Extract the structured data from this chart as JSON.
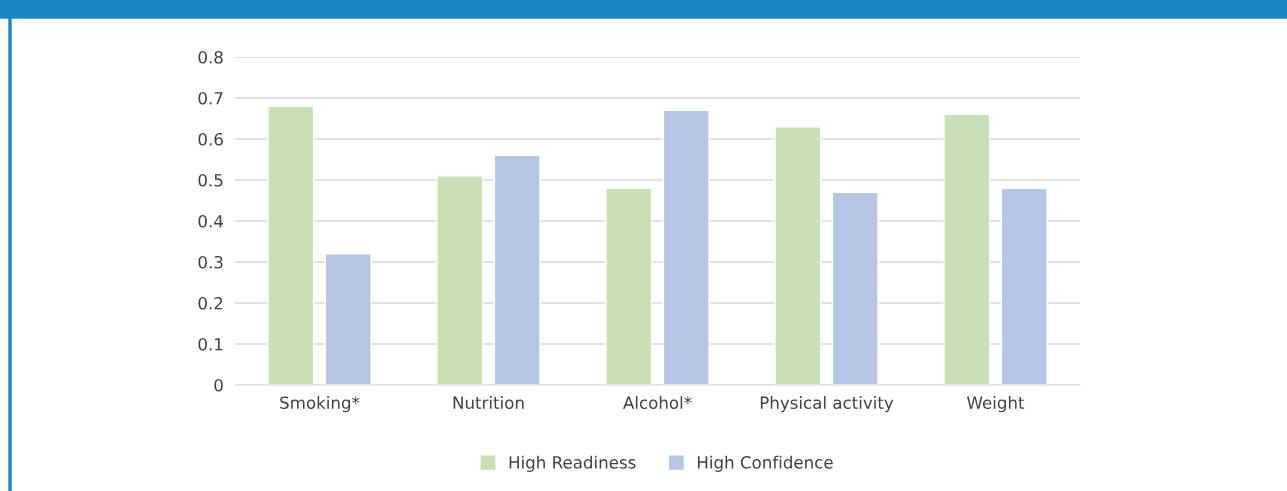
{
  "chart_data": {
    "type": "bar",
    "categories": [
      "Smoking*",
      "Nutrition",
      "Alcohol*",
      "Physical activity",
      "Weight"
    ],
    "series": [
      {
        "name": "High Readiness",
        "color": "#c9dfb6",
        "values": [
          0.68,
          0.51,
          0.48,
          0.63,
          0.66
        ]
      },
      {
        "name": "High Confidence",
        "color": "#b6c5e4",
        "values": [
          0.32,
          0.56,
          0.67,
          0.47,
          0.48
        ]
      }
    ],
    "ylim": [
      0,
      0.8
    ],
    "yticks": [
      0,
      0.1,
      0.2,
      0.3,
      0.4,
      0.5,
      0.6,
      0.7,
      0.8
    ],
    "grid": "y",
    "legend": "bottom"
  }
}
